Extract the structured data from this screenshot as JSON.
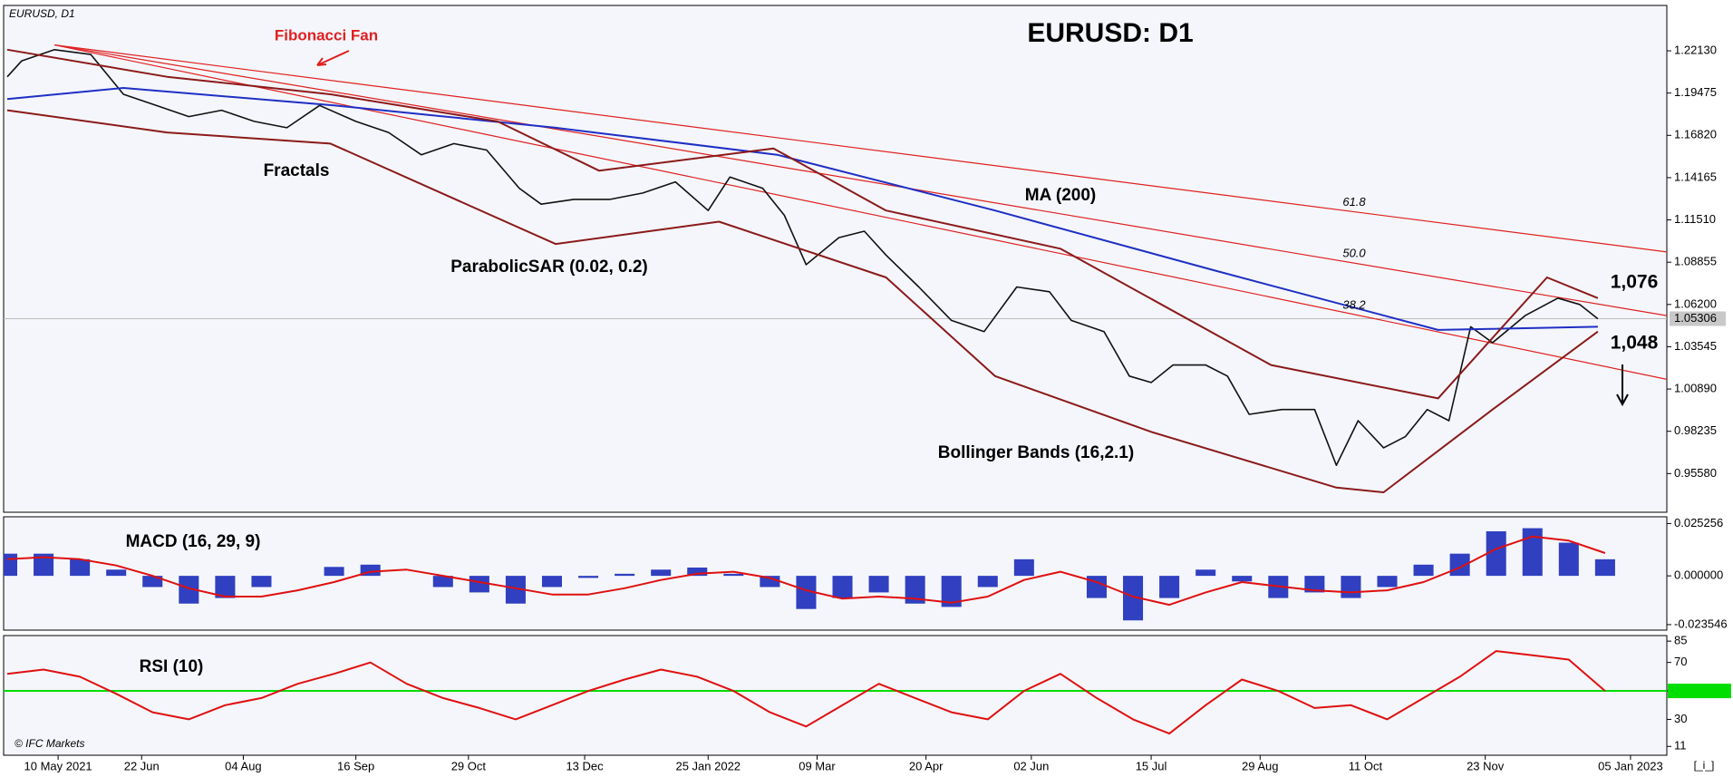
{
  "header": {
    "symbol": "EURUSD, D1",
    "title": "EURUSD: D1",
    "copyright": "© IFC Markets",
    "corner": "[_i_]"
  },
  "annotations": {
    "fibonacci_fan": "Fibonacci Fan",
    "fractals": "Fractals",
    "ma": "MA (200)",
    "sar": "ParabolicSAR (0.02, 0.2)",
    "bollinger": "Bollinger Bands (16,2.1)",
    "target_high": "1,076",
    "target_low": "1,048"
  },
  "chart_data": [
    {
      "type": "line",
      "xlim": [
        -15,
        443
      ],
      "ylim": [
        0.9315,
        1.2498
      ],
      "yticks": [
        {
          "value": 1.2213,
          "label": "1.22130"
        },
        {
          "value": 1.19475,
          "label": "1.19475"
        },
        {
          "value": 1.1682,
          "label": "1.16820"
        },
        {
          "value": 1.14165,
          "label": "1.14165"
        },
        {
          "value": 1.1151,
          "label": "1.11510"
        },
        {
          "value": 1.08855,
          "label": "1.08855"
        },
        {
          "value": 1.062,
          "label": "1.06200"
        },
        {
          "value": 1.03545,
          "label": "1.03545"
        },
        {
          "value": 1.0089,
          "label": "1.00890"
        },
        {
          "value": 0.98235,
          "label": "0.98235"
        },
        {
          "value": 0.9558,
          "label": "0.95580"
        }
      ],
      "last_price": {
        "value": 1.05306,
        "label": "1.05306"
      },
      "series": [
        {
          "name": "EURUSD",
          "color": "#111111",
          "x": [
            -14,
            -10,
            -1,
            9,
            18,
            27,
            36,
            45,
            54,
            63,
            72,
            82,
            91,
            100,
            109,
            118,
            127,
            133,
            142,
            152,
            161,
            170,
            179,
            185,
            194,
            200,
            206,
            215,
            222,
            228,
            237,
            246,
            255,
            264,
            273,
            279,
            288,
            295,
            301,
            307,
            316,
            322,
            328,
            337,
            346,
            352,
            358,
            365,
            371,
            377,
            383,
            389,
            395,
            404,
            413,
            419,
            424
          ],
          "values": [
            1.205,
            1.215,
            1.222,
            1.219,
            1.194,
            1.187,
            1.18,
            1.184,
            1.177,
            1.173,
            1.187,
            1.177,
            1.17,
            1.156,
            1.163,
            1.159,
            1.135,
            1.125,
            1.128,
            1.128,
            1.132,
            1.139,
            1.121,
            1.142,
            1.135,
            1.118,
            1.087,
            1.104,
            1.108,
            1.093,
            1.073,
            1.052,
            1.045,
            1.073,
            1.07,
            1.052,
            1.045,
            1.017,
            1.013,
            1.024,
            1.024,
            1.017,
            0.993,
            0.996,
            0.996,
            0.961,
            0.989,
            0.972,
            0.979,
            0.996,
            0.989,
            1.048,
            1.038,
            1.055,
            1.066,
            1.062,
            1.053
          ]
        },
        {
          "name": "MA (200)",
          "color": "#1f2fc4",
          "x": [
            -14,
            18,
            76,
            137,
            198,
            258,
            319,
            380,
            424
          ],
          "values": [
            1.191,
            1.198,
            1.187,
            1.173,
            1.156,
            1.121,
            1.083,
            1.046,
            1.048
          ]
        },
        {
          "name": "Bollinger upper",
          "color": "#8b1a1a",
          "x": [
            -14,
            30,
            75,
            121,
            149,
            197,
            228,
            276,
            334,
            380,
            410,
            424
          ],
          "values": [
            1.222,
            1.205,
            1.194,
            1.177,
            1.146,
            1.16,
            1.121,
            1.097,
            1.024,
            1.003,
            1.079,
            1.066
          ]
        },
        {
          "name": "Bollinger lower",
          "color": "#8b1a1a",
          "x": [
            -14,
            30,
            75,
            137,
            182,
            228,
            258,
            301,
            352,
            365,
            395,
            424
          ],
          "values": [
            1.184,
            1.17,
            1.163,
            1.1,
            1.114,
            1.079,
            1.017,
            0.982,
            0.947,
            0.944,
            0.996,
            1.045
          ]
        }
      ],
      "fib_fan": {
        "color": "#e02020",
        "origin": {
          "x": -1,
          "y": 1.225
        },
        "end_x": 443,
        "levels": [
          {
            "label": "61.8",
            "value": 1.095
          },
          {
            "label": "50.0",
            "value": 1.055
          },
          {
            "label": "38.2",
            "value": 1.015
          }
        ]
      }
    },
    {
      "type": "bar",
      "title": "MACD (16, 29, 9)",
      "xlim": [
        -15,
        443
      ],
      "ylim": [
        -0.0262,
        0.0285
      ],
      "yticks": [
        0.025256,
        {
          "value": 0,
          "label": "0.000000"
        },
        -0.023546
      ],
      "x": [
        -14,
        -4,
        6,
        16,
        26,
        36,
        46,
        56,
        66,
        76,
        86,
        96,
        106,
        116,
        126,
        136,
        146,
        156,
        166,
        176,
        186,
        196,
        206,
        216,
        226,
        236,
        246,
        256,
        266,
        276,
        286,
        296,
        306,
        316,
        326,
        336,
        346,
        356,
        366,
        376,
        386,
        396,
        406,
        416,
        426
      ],
      "series": [
        {
          "name": "MACD",
          "color": "#3040c0",
          "values": [
            0.0107,
            0.0107,
            0.008,
            0.003,
            -0.0054,
            -0.0134,
            -0.0107,
            -0.0054,
            0,
            0.0043,
            0.0054,
            0,
            -0.0054,
            -0.008,
            -0.0134,
            -0.0054,
            -0.001,
            0.001,
            0.003,
            0.004,
            0.001,
            -0.0054,
            -0.016,
            -0.0107,
            -0.008,
            -0.0134,
            -0.015,
            -0.0054,
            0.008,
            0,
            -0.0107,
            -0.0215,
            -0.0107,
            0.003,
            -0.0027,
            -0.0107,
            -0.008,
            -0.0107,
            -0.0054,
            0.0054,
            0.0107,
            0.0215,
            0.023,
            0.016,
            0.008
          ]
        },
        {
          "name": "Signal",
          "color": "#e01010",
          "values": [
            0.008,
            0.009,
            0.008,
            0.005,
            0,
            -0.006,
            -0.01,
            -0.01,
            -0.007,
            -0.003,
            0.002,
            0.003,
            0,
            -0.003,
            -0.006,
            -0.009,
            -0.009,
            -0.006,
            -0.002,
            0.001,
            0.002,
            -0.001,
            -0.007,
            -0.011,
            -0.01,
            -0.011,
            -0.013,
            -0.01,
            -0.002,
            0.002,
            -0.003,
            -0.01,
            -0.014,
            -0.008,
            -0.003,
            -0.005,
            -0.007,
            -0.008,
            -0.007,
            -0.003,
            0.004,
            0.013,
            0.019,
            0.017,
            0.011
          ]
        }
      ]
    },
    {
      "type": "line",
      "title": "RSI (10)",
      "xlim": [
        -15,
        443
      ],
      "ylim": [
        4.8,
        88.9
      ],
      "yticks": [
        85,
        70,
        50,
        30,
        11
      ],
      "level": {
        "value": 50,
        "color": "#00dd00"
      },
      "x": [
        -14,
        -4,
        6,
        16,
        26,
        36,
        46,
        56,
        66,
        76,
        86,
        96,
        106,
        116,
        126,
        136,
        146,
        156,
        166,
        176,
        186,
        196,
        206,
        216,
        226,
        236,
        246,
        256,
        266,
        276,
        286,
        296,
        306,
        316,
        326,
        336,
        346,
        356,
        366,
        376,
        386,
        396,
        406,
        416,
        426
      ],
      "series": [
        {
          "name": "RSI",
          "color": "#e01010",
          "values": [
            62,
            65,
            60,
            48,
            35,
            30,
            40,
            45,
            55,
            62,
            70,
            55,
            45,
            38,
            30,
            40,
            50,
            58,
            65,
            60,
            50,
            35,
            25,
            40,
            55,
            45,
            35,
            30,
            50,
            62,
            45,
            30,
            20,
            40,
            58,
            50,
            38,
            40,
            30,
            45,
            60,
            78,
            75,
            72,
            50
          ]
        }
      ],
      "xticks": [
        {
          "value": 0,
          "label": "10 May 2021"
        },
        {
          "value": 23,
          "label": "22 Jun"
        },
        {
          "value": 51,
          "label": "04 Aug"
        },
        {
          "value": 82,
          "label": "16 Sep"
        },
        {
          "value": 113,
          "label": "29 Oct"
        },
        {
          "value": 145,
          "label": "13 Dec"
        },
        {
          "value": 179,
          "label": "25 Jan 2022"
        },
        {
          "value": 209,
          "label": "09 Mar"
        },
        {
          "value": 239,
          "label": "20 Apr"
        },
        {
          "value": 268,
          "label": "02 Jun"
        },
        {
          "value": 301,
          "label": "15 Jul"
        },
        {
          "value": 331,
          "label": "29 Aug"
        },
        {
          "value": 360,
          "label": "11 Oct"
        },
        {
          "value": 393,
          "label": "23 Nov"
        },
        {
          "value": 433,
          "label": "05 Jan 2023"
        }
      ]
    }
  ]
}
